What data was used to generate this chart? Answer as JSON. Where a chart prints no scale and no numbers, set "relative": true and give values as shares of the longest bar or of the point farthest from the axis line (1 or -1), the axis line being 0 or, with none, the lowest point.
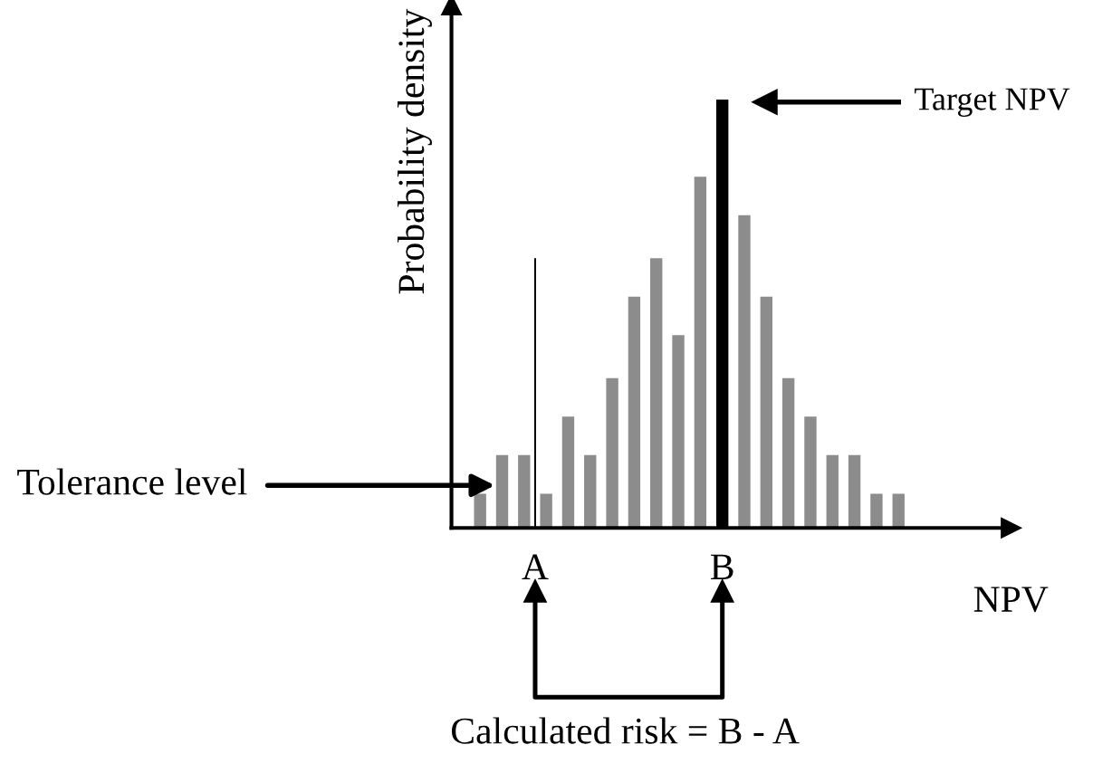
{
  "chart_data": {
    "type": "bar",
    "relative": true,
    "ylabel": "Probability density",
    "xlabel": "NPV",
    "tick_labels": "x",
    "categories": [
      null,
      null,
      null,
      null,
      null,
      "A",
      null,
      null,
      null,
      null,
      null,
      null,
      null,
      null,
      null,
      null,
      null,
      null,
      null,
      null,
      null,
      null,
      "B",
      null,
      null,
      null,
      null,
      null,
      null,
      null,
      null,
      null,
      null,
      null,
      null,
      null,
      null,
      null,
      null
    ],
    "series": [
      {
        "colors": [
          "#8c8c8c",
          null,
          "#8c8c8c",
          null,
          "#8c8c8c",
          null,
          "#8c8c8c",
          null,
          "#8c8c8c",
          null,
          "#8c8c8c",
          null,
          "#8c8c8c",
          null,
          "#8c8c8c",
          null,
          "#8c8c8c",
          null,
          "#8c8c8c",
          null,
          "#8c8c8c",
          null,
          "#000000",
          null,
          "#8c8c8c",
          null,
          "#8c8c8c",
          null,
          "#8c8c8c",
          null,
          "#8c8c8c",
          null,
          "#8c8c8c",
          null,
          "#8c8c8c",
          null,
          "#8c8c8c",
          null,
          "#8c8c8c"
        ],
        "values": [
          0.08,
          null,
          0.17,
          null,
          0.17,
          null,
          0.08,
          null,
          0.26,
          null,
          0.17,
          null,
          0.35,
          null,
          0.54,
          null,
          0.63,
          null,
          0.45,
          null,
          0.82,
          null,
          1,
          null,
          0.73,
          null,
          0.54,
          null,
          0.35,
          null,
          0.26,
          null,
          0.17,
          null,
          0.17,
          null,
          0.08,
          null,
          0.08
        ]
      },
      {
        "color": "#000000",
        "values": [
          null,
          null,
          null,
          null,
          null,
          0.63,
          null,
          null,
          null,
          null,
          null,
          null,
          null,
          null,
          null,
          null,
          null,
          null,
          null,
          null,
          null,
          null,
          null,
          null,
          null,
          null,
          null,
          null,
          null,
          null,
          null,
          null,
          null,
          null,
          null,
          null,
          null,
          null,
          null
        ]
      }
    ],
    "annotations": [
      "Target NPV",
      "Tolerance level",
      "Calculated risk = B - A"
    ]
  }
}
